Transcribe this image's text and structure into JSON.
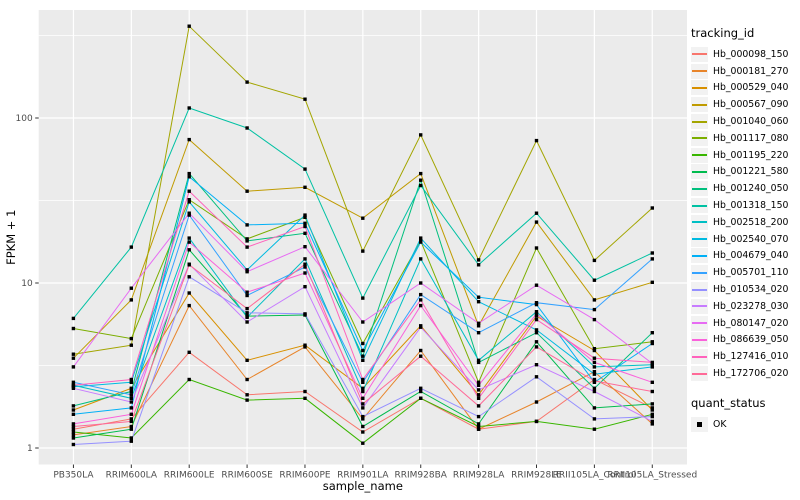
{
  "theme": {
    "panel_bg": "#EBEBEB",
    "grid_color": "#FFFFFF",
    "tick_color": "#333333",
    "tick_label_color": "#4D4D4D",
    "axis_title_color": "#000000",
    "legend_key_bg": "#F2F2F2",
    "point_color": "#000000"
  },
  "chart_data": {
    "type": "line",
    "title": "",
    "xlabel": "sample_name",
    "ylabel": "FPKM + 1",
    "y_scale": "log10",
    "y_ticks": [
      1,
      10,
      100
    ],
    "y_minor_ticks": [
      3.162,
      31.62,
      316.2
    ],
    "ylim_log10": [
      -0.1,
      2.65
    ],
    "grid": true,
    "legend_position": "right",
    "point_shape": "filled-square",
    "categories": [
      "PB350LA",
      "RRIM600LA",
      "RRIM600LE",
      "RRIM600SE",
      "RRIM600PE",
      "RRIM901LA",
      "RRIM928BA",
      "RRIM928LA",
      "RRIM928LE",
      "RRII105LA_Control",
      "RRII105LA_Stressed"
    ],
    "legend": {
      "color_title": "tracking_id",
      "shape_title": "quant_status",
      "shape_items": [
        {
          "label": "OK",
          "shape": "black-square"
        }
      ]
    },
    "series": [
      {
        "name": "Hb_000098_150",
        "color": "#F8766D",
        "values": [
          1.3,
          1.5,
          3.8,
          2.1,
          2.2,
          1.25,
          2.0,
          1.3,
          1.45,
          2.6,
          1.75
        ]
      },
      {
        "name": "Hb_000181_270",
        "color": "#E8852B",
        "values": [
          1.2,
          1.35,
          7.3,
          2.6,
          4.1,
          1.5,
          3.9,
          1.3,
          1.9,
          2.9,
          1.4
        ]
      },
      {
        "name": "Hb_000529_040",
        "color": "#D89000",
        "values": [
          1.7,
          2.3,
          8.7,
          3.4,
          4.2,
          2.3,
          5.5,
          2.1,
          6.3,
          3.9,
          1.7
        ]
      },
      {
        "name": "Hb_000567_090",
        "color": "#C09B00",
        "values": [
          3.5,
          7.9,
          74,
          36,
          38,
          24.7,
          46,
          5.5,
          23.4,
          7.9,
          10.1
        ]
      },
      {
        "name": "Hb_001040_060",
        "color": "#A3A500",
        "values": [
          3.7,
          4.2,
          360,
          165,
          130,
          15.6,
          79,
          13.8,
          73,
          13.7,
          28.5
        ]
      },
      {
        "name": "Hb_001117_080",
        "color": "#7CAE00",
        "values": [
          5.3,
          4.6,
          32,
          18.5,
          25,
          4.3,
          18,
          2.5,
          16.3,
          4.0,
          4.4
        ]
      },
      {
        "name": "Hb_001195_220",
        "color": "#39B600",
        "values": [
          1.25,
          1.15,
          2.6,
          1.95,
          2.0,
          1.07,
          2.0,
          1.35,
          1.45,
          1.3,
          1.6
        ]
      },
      {
        "name": "Hb_001221_580",
        "color": "#00BB4E",
        "values": [
          1.15,
          1.3,
          15.9,
          6.3,
          6.4,
          1.35,
          2.2,
          1.4,
          4.4,
          1.75,
          1.85
        ]
      },
      {
        "name": "Hb_001240_050",
        "color": "#00BF7D",
        "values": [
          1.8,
          2.2,
          46,
          18,
          20,
          3.6,
          42,
          3.3,
          5.0,
          2.3,
          5.0
        ]
      },
      {
        "name": "Hb_001318_150",
        "color": "#00C1A3",
        "values": [
          6.1,
          16.5,
          115,
          87,
          49,
          8.1,
          39,
          12.9,
          26.5,
          10.4,
          15.2
        ]
      },
      {
        "name": "Hb_002518_200",
        "color": "#00BFC4",
        "values": [
          2.4,
          2.0,
          18.7,
          6.2,
          14,
          2.2,
          14,
          3.4,
          6.7,
          3.1,
          3.2
        ]
      },
      {
        "name": "Hb_002540_070",
        "color": "#00BAE0",
        "values": [
          2.35,
          2.5,
          31,
          12,
          25.8,
          3.4,
          18.7,
          7.7,
          5.2,
          2.8,
          3.1
        ]
      },
      {
        "name": "Hb_004679_040",
        "color": "#00B0F6",
        "values": [
          1.6,
          1.75,
          44,
          22.5,
          23,
          3.9,
          17.7,
          8.2,
          7.4,
          2.5,
          4.3
        ]
      },
      {
        "name": "Hb_005701_110",
        "color": "#35A2FF",
        "values": [
          2.5,
          2.1,
          25.8,
          8.4,
          12.5,
          2.5,
          8.5,
          5.0,
          7.6,
          6.9,
          14.0
        ]
      },
      {
        "name": "Hb_010534_020",
        "color": "#9590FF",
        "values": [
          1.05,
          1.1,
          10.9,
          6.6,
          6.5,
          1.55,
          2.3,
          1.55,
          2.7,
          1.5,
          1.55
        ]
      },
      {
        "name": "Hb_023278_030",
        "color": "#C77CFF",
        "values": [
          2.3,
          1.9,
          13,
          5.8,
          9.5,
          1.75,
          5.4,
          2.25,
          3.2,
          2.2,
          1.45
        ]
      },
      {
        "name": "Hb_080147_020",
        "color": "#E76BF3",
        "values": [
          3.1,
          9.3,
          26.5,
          11.7,
          16.6,
          5.8,
          10.0,
          5.7,
          9.7,
          6.0,
          3.25
        ]
      },
      {
        "name": "Hb_086639_050",
        "color": "#FA62DB",
        "values": [
          1.4,
          1.6,
          17.7,
          8.8,
          11.5,
          2.0,
          7.3,
          2.4,
          6.5,
          3.3,
          2.5
        ]
      },
      {
        "name": "Hb_127416_010",
        "color": "#FF62BC",
        "values": [
          2.4,
          2.6,
          36,
          16.5,
          22,
          2.6,
          7.9,
          2.0,
          6.0,
          3.5,
          3.3
        ]
      },
      {
        "name": "Hb_172706_020",
        "color": "#FF6A98",
        "values": [
          1.35,
          1.45,
          12.9,
          7.0,
          13.0,
          1.85,
          3.6,
          1.8,
          4.1,
          2.55,
          2.2
        ]
      }
    ]
  }
}
